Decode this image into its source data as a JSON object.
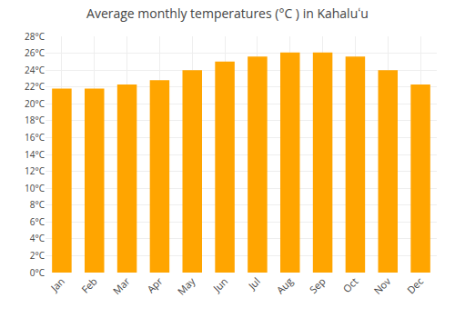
{
  "chart_data": {
    "type": "bar",
    "title": "Average monthly temperatures (°C ) in Kahaluʻu",
    "categories": [
      "Jan",
      "Feb",
      "Mar",
      "Apr",
      "May",
      "Jun",
      "Jul",
      "Aug",
      "Sep",
      "Oct",
      "Nov",
      "Dec"
    ],
    "values": [
      21.8,
      21.8,
      22.3,
      22.8,
      24.0,
      25.0,
      25.6,
      26.1,
      26.1,
      25.6,
      24.0,
      22.3
    ],
    "color": "#FFA500",
    "ylim": [
      0,
      28
    ],
    "yticks": [
      {
        "value": 0,
        "label": "0°C"
      },
      {
        "value": 2,
        "label": "2°C"
      },
      {
        "value": 4,
        "label": "4°C"
      },
      {
        "value": 6,
        "label": "6°C"
      },
      {
        "value": 8,
        "label": "8°C"
      },
      {
        "value": 10,
        "label": "10°C"
      },
      {
        "value": 12,
        "label": "12°C"
      },
      {
        "value": 14,
        "label": "14°C"
      },
      {
        "value": 16,
        "label": "16°C"
      },
      {
        "value": 18,
        "label": "18°C"
      },
      {
        "value": 20,
        "label": "20°C"
      },
      {
        "value": 22,
        "label": "22°C"
      },
      {
        "value": 24,
        "label": "24°C"
      },
      {
        "value": 26,
        "label": "26°C"
      },
      {
        "value": 28,
        "label": "28°C"
      }
    ],
    "grid": true
  }
}
